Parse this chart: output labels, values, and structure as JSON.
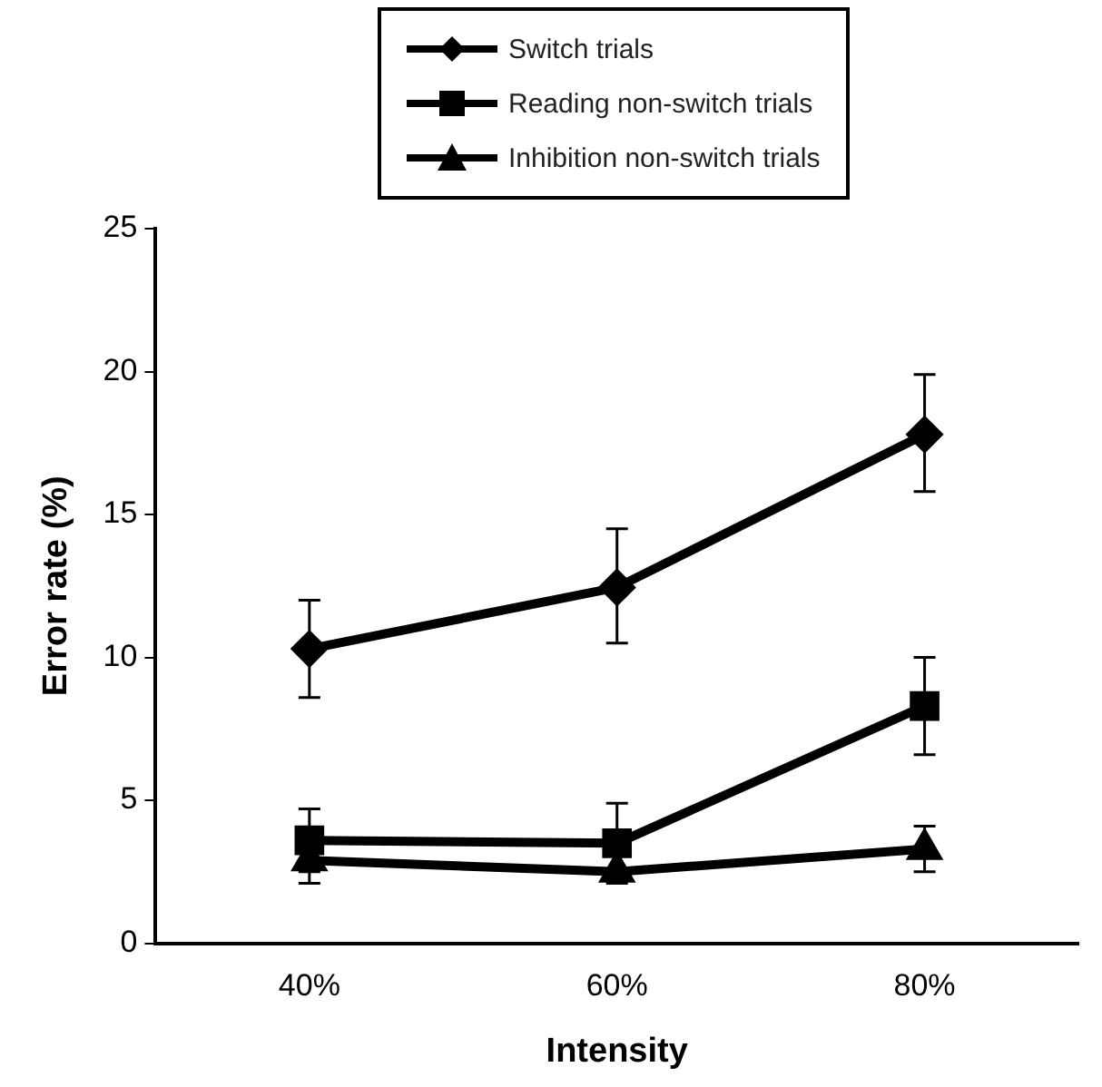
{
  "chart_data": {
    "type": "line",
    "xlabel": "Intensity",
    "ylabel": "Error rate (%)",
    "categories": [
      "40%",
      "60%",
      "80%"
    ],
    "series": [
      {
        "name": "Switch trials",
        "color": "#000000",
        "marker": "diamond",
        "values": [
          10.3,
          12.45,
          17.8
        ],
        "errors": [
          [
            8.6,
            12.0
          ],
          [
            10.5,
            14.5
          ],
          [
            15.8,
            19.9
          ]
        ]
      },
      {
        "name": "Reading non-switch trials",
        "color": "#000000",
        "marker": "square",
        "values": [
          3.6,
          3.5,
          8.3
        ],
        "errors": [
          1.1,
          1.4,
          1.7
        ]
      },
      {
        "name": "Inhibition non-switch trials",
        "color": "#000000",
        "marker": "triangle",
        "values": [
          2.9,
          2.5,
          3.3
        ],
        "errors": [
          0.8,
          null,
          0.8
        ]
      }
    ],
    "ylim": [
      0,
      25
    ],
    "yticks": [
      0,
      5,
      10,
      15,
      20,
      25
    ],
    "grid": false,
    "legend": "top",
    "line_style": "solid"
  }
}
